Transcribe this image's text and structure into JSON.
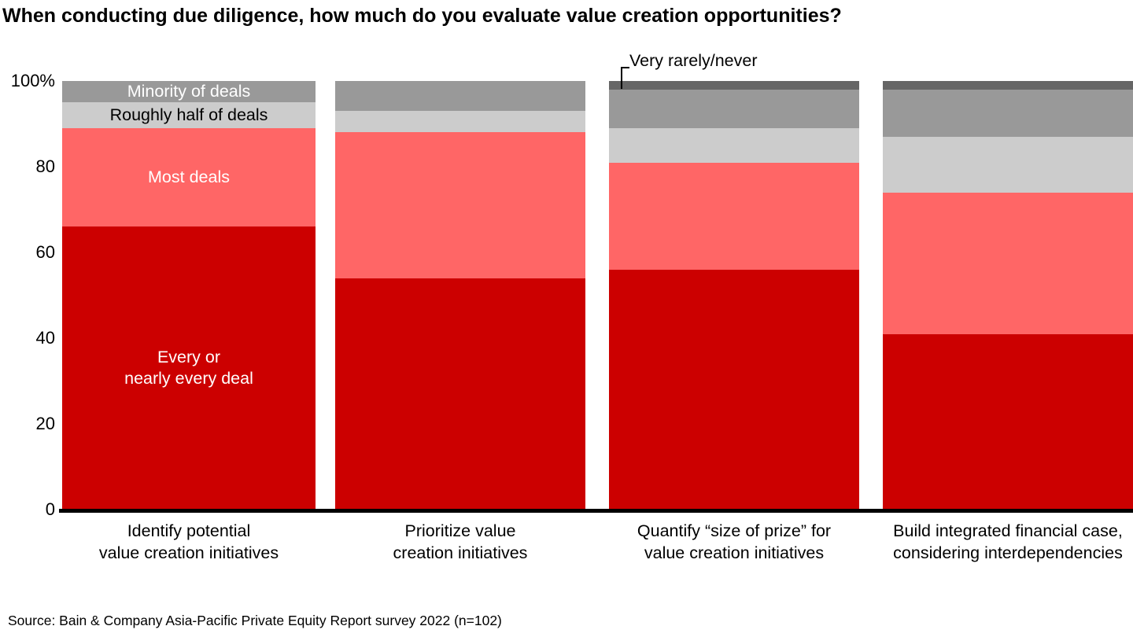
{
  "page": {
    "title": "When conducting due diligence, how much do you evaluate value creation opportunities?",
    "source": "Source: Bain & Company Asia-Pacific Private Equity Report survey 2022 (n=102)"
  },
  "chart_data": {
    "type": "bar",
    "subtype": "stacked-100-percent-vertical",
    "title": "When conducting due diligence, how much do you evaluate value creation opportunities?",
    "unit": "%",
    "grid": false,
    "legend_position": "labels-inside-first-bar",
    "categories": [
      "Identify potential\nvalue creation initiatives",
      "Prioritize value\ncreation initiatives",
      "Quantify “size of prize” for\nvalue creation initiatives",
      "Build integrated financial case,\nconsidering interdependencies"
    ],
    "series": [
      {
        "name": "Every or nearly every deal",
        "display_label": "Every or\nnearly every deal",
        "color": "#cc0000",
        "label_color": "#ffffff",
        "values": [
          66,
          54,
          56,
          41
        ]
      },
      {
        "name": "Most deals",
        "display_label": "Most deals",
        "color": "#ff6666",
        "label_color": "#ffffff",
        "values": [
          23,
          34,
          25,
          33
        ]
      },
      {
        "name": "Roughly half of deals",
        "display_label": "Roughly half of deals",
        "color": "#cccccc",
        "label_color": "#000000",
        "values": [
          6,
          5,
          8,
          13
        ]
      },
      {
        "name": "Minority of deals",
        "display_label": "Minority of deals",
        "color": "#999999",
        "label_color": "#ffffff",
        "values": [
          5,
          7,
          9,
          11
        ]
      },
      {
        "name": "Very rarely/never",
        "display_label": "",
        "color": "#666666",
        "label_color": "#ffffff",
        "values": [
          0,
          0,
          2,
          2
        ]
      }
    ],
    "y_axis": {
      "min": 0,
      "max": 100,
      "ticks": [
        "0",
        "20",
        "40",
        "60",
        "80",
        "100%"
      ],
      "axis_color": "#000000"
    },
    "annotation": {
      "label": "Very rarely/never",
      "target_category_index": 2,
      "target_series": "Very rarely/never"
    },
    "in_bar_labels_category_index": 0
  }
}
